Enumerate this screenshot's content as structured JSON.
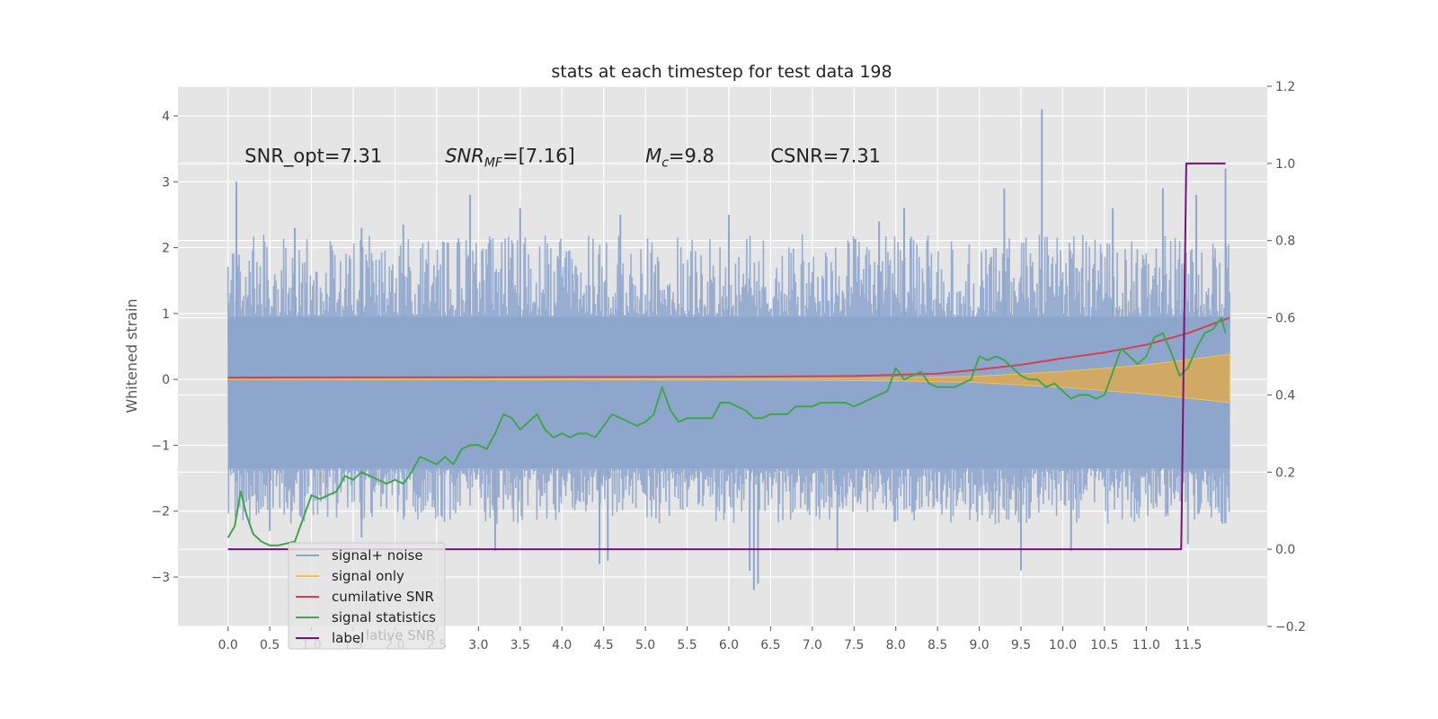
{
  "chart_data": {
    "type": "line",
    "title": "stats at each timestep for test data 198",
    "ylabel": "Whitened strain",
    "xlabel": "",
    "xlim": [
      -0.6,
      12.45
    ],
    "ylim": [
      -3.75,
      4.45
    ],
    "y2lim": [
      -0.2,
      1.2
    ],
    "grid": true,
    "background": "#e5e5e5",
    "x_ticks": [
      "0.0",
      "0.5",
      "1.0",
      "1.5",
      "2.0",
      "2.5",
      "3.0",
      "3.5",
      "4.0",
      "4.5",
      "5.0",
      "5.5",
      "6.0",
      "6.5",
      "7.0",
      "7.5",
      "8.0",
      "8.5",
      "9.0",
      "9.5",
      "10.0",
      "10.5",
      "11.0",
      "11.5"
    ],
    "y_ticks": [
      "−3",
      "−2",
      "−1",
      "0",
      "1",
      "2",
      "3",
      "4"
    ],
    "y2_ticks": [
      "−0.2",
      "0.0",
      "0.2",
      "0.4",
      "0.6",
      "0.8",
      "1.0",
      "1.2"
    ],
    "annotations": [
      {
        "text": "SNR_opt=7.31",
        "x": 0.2,
        "y": 3.3
      },
      {
        "text": "SNR",
        "sub": "MF",
        "suffix": "=[7.16]",
        "x": 2.6,
        "y": 3.3
      },
      {
        "text": "M",
        "sub": "c",
        "suffix": "=9.8",
        "x": 5.0,
        "y": 3.3
      },
      {
        "text": "CSNR=7.31",
        "x": 6.5,
        "y": 3.3
      }
    ],
    "legend": {
      "position": "lower-left",
      "entries": [
        {
          "label": "signal+ noise",
          "color": "#8fa6cc"
        },
        {
          "label": "signal only",
          "color": "#f0c44a"
        },
        {
          "label": "cumilative SNR",
          "color": "#d0434f"
        },
        {
          "label": "signal statistics",
          "color": "#3fa64f"
        },
        {
          "label": "label",
          "color": "#7b1080"
        }
      ],
      "ghost_text": "lative SNR"
    },
    "series": [
      {
        "name": "signal+ noise",
        "axis": "left",
        "color": "#8fa6cc",
        "x_range": [
          0.0,
          12.0
        ],
        "band_inner": [
          -1.35,
          0.95
        ],
        "peaks": [
          [
            0.1,
            3.0
          ],
          [
            0.8,
            2.3
          ],
          [
            1.6,
            2.3
          ],
          [
            2.1,
            2.35
          ],
          [
            2.9,
            2.8
          ],
          [
            3.5,
            2.6
          ],
          [
            4.7,
            2.5
          ],
          [
            6.0,
            2.5
          ],
          [
            7.8,
            2.4
          ],
          [
            8.1,
            2.6
          ],
          [
            9.3,
            2.9
          ],
          [
            9.75,
            4.1
          ],
          [
            10.6,
            2.6
          ],
          [
            11.2,
            2.9
          ],
          [
            11.6,
            2.8
          ],
          [
            11.95,
            3.2
          ]
        ],
        "troughs": [
          [
            0.5,
            -2.3
          ],
          [
            1.6,
            -2.4
          ],
          [
            3.2,
            -2.6
          ],
          [
            4.45,
            -2.8
          ],
          [
            4.55,
            -2.75
          ],
          [
            6.25,
            -2.9
          ],
          [
            6.3,
            -3.2
          ],
          [
            6.35,
            -3.1
          ],
          [
            7.3,
            -2.6
          ],
          [
            9.5,
            -2.9
          ],
          [
            10.1,
            -2.6
          ],
          [
            11.5,
            -2.5
          ]
        ]
      },
      {
        "name": "signal only",
        "axis": "left",
        "color": "#f0c44a",
        "x": [
          0.0,
          6.0,
          8.0,
          9.0,
          10.0,
          11.0,
          12.0
        ],
        "upper": [
          0.0,
          0.01,
          0.02,
          0.05,
          0.12,
          0.22,
          0.38
        ],
        "lower": [
          0.0,
          -0.01,
          -0.02,
          -0.05,
          -0.12,
          -0.22,
          -0.35
        ]
      },
      {
        "name": "cumilative SNR",
        "axis": "right",
        "color": "#d0434f",
        "x": [
          0.0,
          6.0,
          7.5,
          8.5,
          9.0,
          9.5,
          10.0,
          10.5,
          11.0,
          11.5,
          12.0
        ],
        "y": [
          0.445,
          0.447,
          0.449,
          0.455,
          0.466,
          0.478,
          0.495,
          0.51,
          0.53,
          0.56,
          0.6
        ]
      },
      {
        "name": "signal statistics",
        "axis": "right",
        "color": "#3fa64f",
        "x": [
          0.0,
          0.08,
          0.15,
          0.22,
          0.3,
          0.4,
          0.5,
          0.6,
          0.7,
          0.8,
          0.9,
          1.0,
          1.1,
          1.2,
          1.3,
          1.4,
          1.5,
          1.6,
          1.7,
          1.8,
          1.9,
          2.0,
          2.1,
          2.2,
          2.3,
          2.4,
          2.5,
          2.6,
          2.7,
          2.8,
          2.9,
          3.0,
          3.1,
          3.2,
          3.3,
          3.4,
          3.5,
          3.6,
          3.7,
          3.8,
          3.9,
          4.0,
          4.1,
          4.2,
          4.3,
          4.4,
          4.5,
          4.6,
          4.7,
          4.8,
          4.9,
          5.0,
          5.1,
          5.2,
          5.3,
          5.4,
          5.5,
          5.6,
          5.7,
          5.8,
          5.9,
          6.0,
          6.1,
          6.2,
          6.3,
          6.4,
          6.5,
          6.6,
          6.7,
          6.8,
          6.9,
          7.0,
          7.1,
          7.2,
          7.3,
          7.4,
          7.5,
          7.6,
          7.7,
          7.8,
          7.9,
          8.0,
          8.1,
          8.2,
          8.3,
          8.4,
          8.5,
          8.6,
          8.7,
          8.8,
          8.9,
          9.0,
          9.1,
          9.2,
          9.3,
          9.4,
          9.5,
          9.6,
          9.7,
          9.8,
          9.9,
          10.0,
          10.1,
          10.2,
          10.3,
          10.4,
          10.5,
          10.6,
          10.7,
          10.8,
          10.9,
          11.0,
          11.1,
          11.2,
          11.3,
          11.4,
          11.5,
          11.6,
          11.7,
          11.8,
          11.9,
          11.95
        ],
        "y": [
          0.03,
          0.06,
          0.15,
          0.09,
          0.04,
          0.02,
          0.01,
          0.01,
          0.015,
          0.02,
          0.08,
          0.14,
          0.13,
          0.14,
          0.15,
          0.19,
          0.18,
          0.2,
          0.19,
          0.18,
          0.17,
          0.18,
          0.17,
          0.2,
          0.24,
          0.23,
          0.22,
          0.24,
          0.22,
          0.26,
          0.27,
          0.27,
          0.26,
          0.3,
          0.35,
          0.34,
          0.31,
          0.33,
          0.35,
          0.31,
          0.29,
          0.3,
          0.29,
          0.3,
          0.3,
          0.29,
          0.32,
          0.35,
          0.34,
          0.33,
          0.32,
          0.33,
          0.35,
          0.42,
          0.36,
          0.33,
          0.34,
          0.34,
          0.34,
          0.34,
          0.38,
          0.38,
          0.37,
          0.36,
          0.34,
          0.34,
          0.35,
          0.35,
          0.35,
          0.37,
          0.37,
          0.37,
          0.38,
          0.38,
          0.38,
          0.38,
          0.37,
          0.38,
          0.39,
          0.4,
          0.41,
          0.47,
          0.44,
          0.45,
          0.46,
          0.43,
          0.42,
          0.42,
          0.42,
          0.43,
          0.44,
          0.5,
          0.49,
          0.5,
          0.49,
          0.47,
          0.45,
          0.44,
          0.44,
          0.42,
          0.43,
          0.41,
          0.39,
          0.4,
          0.4,
          0.39,
          0.4,
          0.46,
          0.52,
          0.5,
          0.48,
          0.5,
          0.55,
          0.56,
          0.51,
          0.45,
          0.47,
          0.52,
          0.56,
          0.57,
          0.6,
          0.56
        ],
        "note": ""
      },
      {
        "name": "label",
        "axis": "right",
        "color": "#7b1080",
        "x": [
          0.0,
          11.42,
          11.48,
          11.95
        ],
        "y": [
          0.0,
          0.0,
          1.0,
          1.0
        ]
      }
    ]
  }
}
